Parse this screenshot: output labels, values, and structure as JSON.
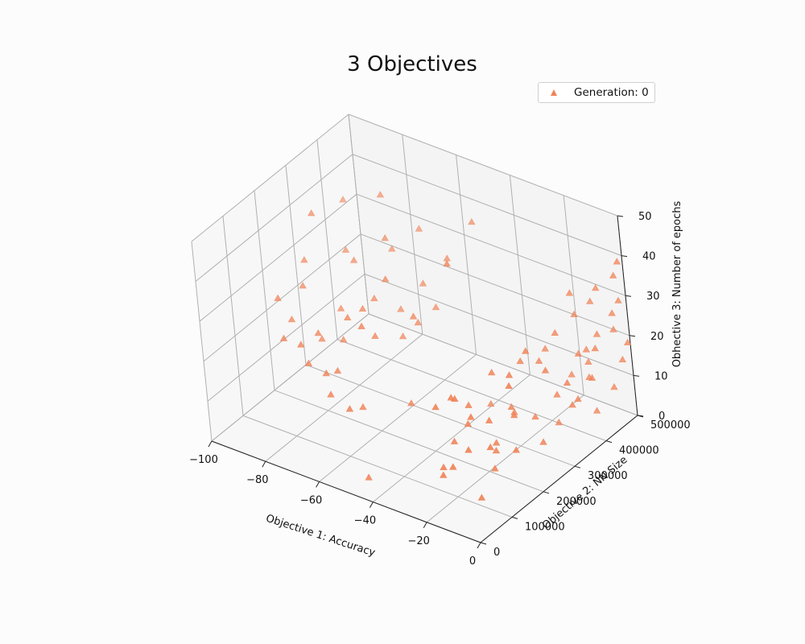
{
  "chart_data": {
    "type": "scatter",
    "projection": "3d",
    "title": "3 Objectives",
    "xlabel": "Objective 1: Accuracy",
    "ylabel": "Objective 2: NN Size",
    "zlabel": "Obhective 3: Number of epochs",
    "xlim": [
      -100,
      0
    ],
    "ylim": [
      0,
      500000
    ],
    "zlim": [
      0,
      50
    ],
    "xticks": [
      "−100",
      "−80",
      "−60",
      "−40",
      "−20",
      "0"
    ],
    "yticks": [
      "0",
      "100000",
      "200000",
      "300000",
      "400000",
      "500000"
    ],
    "zticks": [
      "0",
      "10",
      "20",
      "30",
      "40",
      "50"
    ],
    "grid": true,
    "legend_position": "top-right",
    "marker": "triangle",
    "series": [
      {
        "name": "Generation: 0",
        "color": "#f08358",
        "points": [
          [
            -95,
            420000,
            35
          ],
          [
            -92,
            300000,
            40
          ],
          [
            -90,
            250000,
            32
          ],
          [
            -88,
            360000,
            28
          ],
          [
            -85,
            200000,
            30
          ],
          [
            -84,
            150000,
            25
          ],
          [
            -83,
            440000,
            38
          ],
          [
            -82,
            100000,
            34
          ],
          [
            -80,
            320000,
            30
          ],
          [
            -79,
            260000,
            22
          ],
          [
            -78,
            420000,
            27
          ],
          [
            -77,
            180000,
            20
          ],
          [
            -76,
            60000,
            28
          ],
          [
            -75,
            380000,
            33
          ],
          [
            -74,
            220000,
            18
          ],
          [
            -73,
            140000,
            25
          ],
          [
            -72,
            460000,
            31
          ],
          [
            -71,
            300000,
            24
          ],
          [
            -70,
            80000,
            22
          ],
          [
            -69,
            360000,
            18
          ],
          [
            -68,
            240000,
            26
          ],
          [
            -67,
            40000,
            30
          ],
          [
            -66,
            410000,
            22
          ],
          [
            -65,
            170000,
            29
          ],
          [
            -64,
            320000,
            15
          ],
          [
            -63,
            110000,
            20
          ],
          [
            -62,
            270000,
            33
          ],
          [
            -61,
            450000,
            27
          ],
          [
            -60,
            60000,
            18
          ],
          [
            -59,
            200000,
            24
          ],
          [
            -58,
            380000,
            20
          ],
          [
            -57,
            30000,
            26
          ],
          [
            -56,
            140000,
            31
          ],
          [
            -55,
            300000,
            22
          ],
          [
            -54,
            480000,
            36
          ],
          [
            -52,
            90000,
            15
          ],
          [
            -50,
            250000,
            28
          ],
          [
            -48,
            20000,
            20
          ],
          [
            -45,
            180000,
            12
          ],
          [
            -42,
            10000,
            5
          ],
          [
            -20,
            60000,
            25
          ],
          [
            -19,
            150000,
            20
          ],
          [
            -18,
            90000,
            15
          ],
          [
            -18,
            220000,
            24
          ],
          [
            -17,
            40000,
            10
          ],
          [
            -17,
            300000,
            22
          ],
          [
            -16,
            120000,
            18
          ],
          [
            -16,
            260000,
            12
          ],
          [
            -15,
            70000,
            28
          ],
          [
            -15,
            340000,
            20
          ],
          [
            -14,
            180000,
            8
          ],
          [
            -14,
            20000,
            14
          ],
          [
            -13,
            230000,
            16
          ],
          [
            -13,
            380000,
            25
          ],
          [
            -12,
            100000,
            22
          ],
          [
            -12,
            290000,
            10
          ],
          [
            -11,
            50000,
            30
          ],
          [
            -11,
            160000,
            12
          ],
          [
            -10,
            420000,
            18
          ],
          [
            -10,
            210000,
            26
          ],
          [
            -9,
            10000,
            16
          ],
          [
            -9,
            130000,
            20
          ],
          [
            -8,
            330000,
            14
          ],
          [
            -8,
            250000,
            30
          ],
          [
            -7,
            70000,
            5
          ],
          [
            -7,
            190000,
            18
          ],
          [
            -6,
            450000,
            22
          ],
          [
            -6,
            110000,
            10
          ],
          [
            -5,
            280000,
            24
          ],
          [
            -5,
            30000,
            20
          ],
          [
            -4,
            360000,
            12
          ],
          [
            -4,
            160000,
            28
          ],
          [
            -3,
            400000,
            15
          ],
          [
            -3,
            80000,
            18
          ],
          [
            -2,
            230000,
            10
          ],
          [
            -2,
            470000,
            27
          ],
          [
            -1,
            310000,
            20
          ],
          [
            -1,
            140000,
            14
          ],
          [
            -20,
            400000,
            18
          ],
          [
            -18,
            480000,
            22
          ],
          [
            -16,
            440000,
            10
          ],
          [
            -14,
            500000,
            25
          ],
          [
            -12,
            460000,
            16
          ],
          [
            -10,
            490000,
            30
          ],
          [
            -8,
            430000,
            12
          ],
          [
            -6,
            500000,
            20
          ],
          [
            -4,
            470000,
            8
          ],
          [
            -3,
            500000,
            28
          ],
          [
            -2,
            410000,
            22
          ],
          [
            -1,
            480000,
            15
          ],
          [
            -5,
            420000,
            5
          ],
          [
            -9,
            380000,
            8
          ],
          [
            -11,
            350000,
            5
          ],
          [
            -13,
            470000,
            12
          ],
          [
            -15,
            450000,
            30
          ],
          [
            -2,
            500000,
            38
          ],
          [
            -4,
            500000,
            34
          ],
          [
            -1,
            500000,
            18
          ],
          [
            -35,
            250000,
            45
          ],
          [
            -30,
            300000,
            8
          ]
        ]
      }
    ]
  }
}
